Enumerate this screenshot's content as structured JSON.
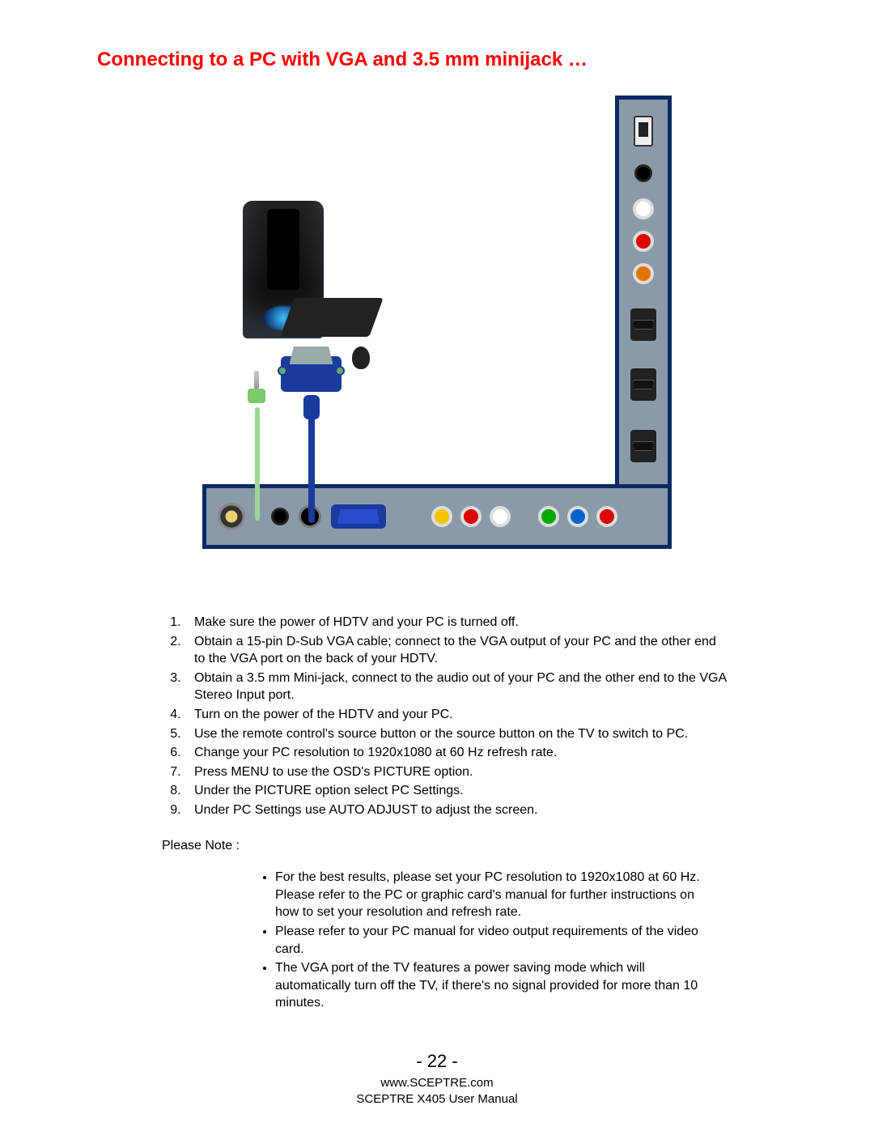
{
  "title": "Connecting to a PC with VGA and 3.5 mm minijack …",
  "title_color": "#ff0000",
  "title_fontsize": 24,
  "body_fontsize": 16,
  "panel_border_color": "#0a2a66",
  "panel_fill_color": "#8b9aa8",
  "vga_color": "#1a3a9e",
  "audio_cable_color": "#9fd698",
  "audio_jack_color": "#7cc96e",
  "vertical_ports": [
    {
      "name": "usb",
      "type": "usb"
    },
    {
      "name": "headphone-jack",
      "type": "jack",
      "color": "#000000"
    },
    {
      "name": "rca-white",
      "type": "rca",
      "color": "#ffffff"
    },
    {
      "name": "rca-red",
      "type": "rca",
      "color": "#dd0000"
    },
    {
      "name": "rca-orange",
      "type": "rca",
      "color": "#e67300"
    },
    {
      "name": "hdmi-1",
      "type": "hdmi"
    },
    {
      "name": "hdmi-2",
      "type": "hdmi"
    },
    {
      "name": "hdmi-3",
      "type": "hdmi"
    }
  ],
  "horizontal_ports": [
    {
      "name": "coax",
      "type": "coax"
    },
    {
      "name": "jack-black",
      "type": "jack",
      "color": "#000000"
    },
    {
      "name": "svideo",
      "type": "svideo"
    },
    {
      "name": "vga",
      "type": "vga",
      "color": "#1a3a9e"
    },
    {
      "name": "composite-yellow",
      "type": "rca",
      "color": "#f5c400"
    },
    {
      "name": "composite-red",
      "type": "rca",
      "color": "#dd0000"
    },
    {
      "name": "composite-white",
      "type": "rca",
      "color": "#ffffff"
    },
    {
      "name": "component-green",
      "type": "rca",
      "color": "#00aa00"
    },
    {
      "name": "component-blue",
      "type": "rca",
      "color": "#0066cc"
    },
    {
      "name": "component-red",
      "type": "rca",
      "color": "#dd0000"
    }
  ],
  "steps": [
    "Make sure the power of HDTV and your PC is turned off.",
    "Obtain a 15-pin D-Sub VGA cable; connect to the VGA output of your PC and the other end to the VGA port on the back of your HDTV.",
    "Obtain a 3.5 mm Mini-jack, connect to the audio out of your PC and the other end to the VGA Stereo Input port.",
    "Turn on the power of the HDTV and your PC.",
    "Use the remote control's source button or the source button on the TV to switch to PC.",
    "Change your PC resolution to 1920x1080 at 60 Hz refresh rate.",
    "Press MENU to use the OSD's PICTURE option.",
    "Under the PICTURE option select PC Settings.",
    "Under PC Settings use AUTO ADJUST to adjust the screen."
  ],
  "note_label": "Please Note :",
  "notes": [
    "For the best results, please set your PC resolution to 1920x1080 at 60 Hz.  Please refer to the PC or graphic card's manual for further instructions on how to set your resolution and refresh rate.",
    "Please refer to your PC manual for video output requirements of the video card.",
    "The VGA port of the TV features a power saving mode which will automatically turn off the TV, if there's no signal provided for more than 10 minutes."
  ],
  "page_number": "- 22 -",
  "footer_url": "www.SCEPTRE.com",
  "footer_manual": "SCEPTRE X405 User Manual"
}
